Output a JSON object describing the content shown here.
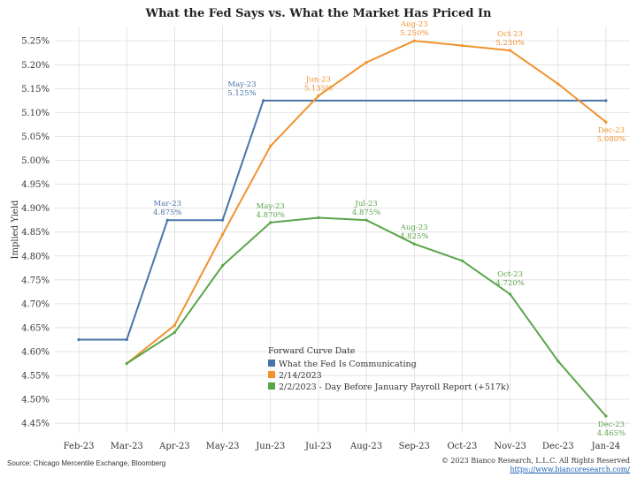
{
  "colors": {
    "fed": "#4a74a8",
    "feb14": "#f0922e",
    "feb2": "#5aa54a",
    "grid": "#dddddd",
    "plot_bg": "#ffffff",
    "text": "#333333"
  },
  "footer": {
    "source": "Source: Chicago Mercentile Exchange, Bloomberg",
    "copyright": "© 2023 Bianco Research, L.L.C. All Rights Reserved",
    "url": "https://www.biancoresearch.com/"
  },
  "chart_data": {
    "type": "line",
    "title": "What the Fed Says vs. What the Market Has Priced In",
    "xlabel": "",
    "ylabel": "Implied Yield",
    "categories": [
      "Feb-23",
      "Mar-23",
      "Apr-23",
      "May-23",
      "Jun-23",
      "Jul-23",
      "Aug-23",
      "Sep-23",
      "Oct-23",
      "Nov-23",
      "Dec-23",
      "Jan-24"
    ],
    "ylim": [
      4.43,
      5.28
    ],
    "yticks": [
      4.45,
      4.5,
      4.55,
      4.6,
      4.65,
      4.7,
      4.75,
      4.8,
      4.85,
      4.9,
      4.95,
      5.0,
      5.05,
      5.1,
      5.15,
      5.2,
      5.25
    ],
    "ytick_labels": [
      "4.45%",
      "4.50%",
      "4.55%",
      "4.60%",
      "4.65%",
      "4.70%",
      "4.75%",
      "4.80%",
      "4.85%",
      "4.90%",
      "4.95%",
      "5.00%",
      "5.05%",
      "5.10%",
      "5.15%",
      "5.20%",
      "5.25%"
    ],
    "grid": true,
    "legend": {
      "title": "Forward Curve Date",
      "placement": "bottom-center"
    },
    "series": [
      {
        "name": "What the Fed Is Communicating",
        "color_key": "fed",
        "x": [
          0,
          1,
          1.85,
          3.0,
          3.85,
          11.0
        ],
        "values": [
          4.625,
          4.625,
          4.875,
          4.875,
          5.125,
          5.125
        ],
        "annotations": [
          {
            "x": 1.85,
            "y": 4.875,
            "label1": "Mar-23",
            "label2": "4.875%"
          },
          {
            "x": 3.85,
            "y": 5.125,
            "label1": "May-23",
            "label2": "5.125%"
          }
        ]
      },
      {
        "name": "2/14/2023",
        "color_key": "feb14",
        "x": [
          1,
          2,
          3,
          4,
          5,
          6,
          7,
          8,
          9,
          10,
          11
        ],
        "values": [
          4.575,
          4.655,
          4.845,
          5.03,
          5.135,
          5.205,
          5.25,
          5.24,
          5.23,
          5.16,
          5.08
        ],
        "annotations": [
          {
            "x": 5,
            "y": 5.135,
            "label1": "Jun-23",
            "label2": "5.135%"
          },
          {
            "x": 7,
            "y": 5.25,
            "label1": "Aug-23",
            "label2": "5.250%"
          },
          {
            "x": 9,
            "y": 5.23,
            "label1": "Oct-23",
            "label2": "5.230%"
          },
          {
            "x": 11,
            "y": 5.08,
            "label1": "Dec-23",
            "label2": "5.080%"
          }
        ]
      },
      {
        "name": "2/2/2023 - Day Before January Payroll Report (+517k)",
        "color_key": "feb2",
        "x": [
          1,
          2,
          3,
          4,
          5,
          6,
          7,
          8,
          9,
          10,
          11
        ],
        "values": [
          4.575,
          4.64,
          4.78,
          4.87,
          4.88,
          4.875,
          4.825,
          4.79,
          4.72,
          4.58,
          4.465
        ],
        "annotations": [
          {
            "x": 4,
            "y": 4.87,
            "label1": "May-23",
            "label2": "4.870%"
          },
          {
            "x": 6,
            "y": 4.875,
            "label1": "Jul-23",
            "label2": "4.875%"
          },
          {
            "x": 7,
            "y": 4.825,
            "label1": "Aug-23",
            "label2": "4.825%"
          },
          {
            "x": 9,
            "y": 4.72,
            "label1": "Oct-23",
            "label2": "4.720%"
          },
          {
            "x": 11,
            "y": 4.465,
            "label1": "Dec-23",
            "label2": "4.465%"
          }
        ]
      }
    ]
  }
}
